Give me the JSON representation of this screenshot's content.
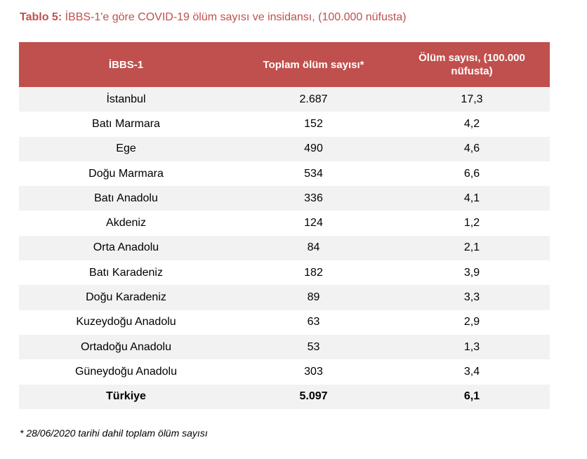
{
  "caption": {
    "label": "Tablo 5:",
    "text": " İBBS-1'e göre COVID-19 ölüm sayısı ve insidansı, (100.000 nüfusta)"
  },
  "table": {
    "headers": [
      "İBBS-1",
      "Toplam ölüm sayısı*",
      "Ölüm sayısı, (100.000 nüfusta)"
    ],
    "rows": [
      [
        "İstanbul",
        "2.687",
        "17,3"
      ],
      [
        "Batı Marmara",
        "152",
        "4,2"
      ],
      [
        "Ege",
        "490",
        "4,6"
      ],
      [
        "Doğu Marmara",
        "534",
        "6,6"
      ],
      [
        "Batı Anadolu",
        "336",
        "4,1"
      ],
      [
        "Akdeniz",
        "124",
        "1,2"
      ],
      [
        "Orta Anadolu",
        "84",
        "2,1"
      ],
      [
        "Batı Karadeniz",
        "182",
        "3,9"
      ],
      [
        "Doğu Karadeniz",
        "89",
        "3,3"
      ],
      [
        "Kuzeydoğu Anadolu",
        "63",
        "2,9"
      ],
      [
        "Ortadoğu Anadolu",
        "53",
        "1,3"
      ],
      [
        "Güneydoğu Anadolu",
        "303",
        "3,4"
      ],
      [
        "Türkiye",
        "5.097",
        "6,1"
      ]
    ]
  },
  "footnote": "* 28/06/2020 tarihi dahil toplam ölüm sayısı",
  "colors": {
    "accent": "#c0504d",
    "row_stripe": "#f2f2f2"
  }
}
